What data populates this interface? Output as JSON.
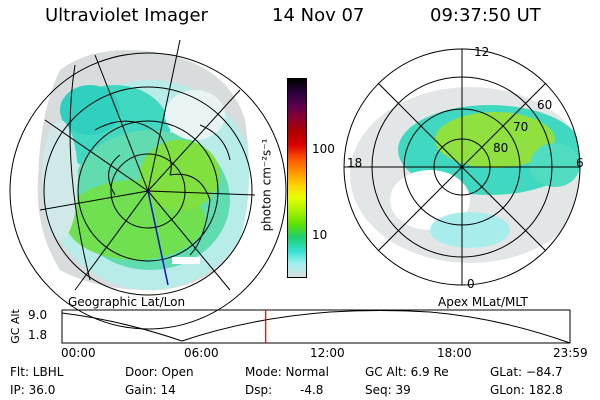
{
  "header": {
    "instrument": "Ultraviolet Imager",
    "date": "14 Nov 07",
    "time": "09:37:50 UT"
  },
  "left_map": {
    "caption": "Geographic Lat/Lon"
  },
  "right_map": {
    "caption": "Apex MLat/MLT",
    "mlt_labels": {
      "top": "12",
      "left": "18",
      "right": "6",
      "bottom": "0"
    },
    "lat_labels": [
      "60",
      "70",
      "80"
    ]
  },
  "colorbar": {
    "unit_label": "photon cm⁻²s⁻¹",
    "ticks": [
      "100",
      "10"
    ],
    "colors": [
      "#000000",
      "#2a003a",
      "#5a0050",
      "#8a0030",
      "#b00000",
      "#d80000",
      "#ff5000",
      "#ff9000",
      "#ffd000",
      "#e8ff00",
      "#a8f000",
      "#60e000",
      "#20d070",
      "#30e0d0",
      "#a0f0f0",
      "#d8e0e0"
    ]
  },
  "orbit_plot": {
    "ylabel": "GC Alt",
    "yticks": [
      "9.0",
      "1.8"
    ],
    "xticks": [
      "00:00",
      "06:00",
      "12:00",
      "18:00",
      "23:59"
    ],
    "current_time_fraction": 0.401
  },
  "info": {
    "flt": "Flt: LBHL",
    "ip": "IP: 36.0",
    "door": "Door: Open",
    "gain": "Gain: 14",
    "mode": "Mode: Normal",
    "dsp_label": "Dsp:",
    "dsp_value": "-4.8",
    "gc_alt": "GC Alt: 6.9 Re",
    "seq": "Seq: 39",
    "glat": "GLat: −84.7",
    "glon": "GLon: 182.8"
  }
}
